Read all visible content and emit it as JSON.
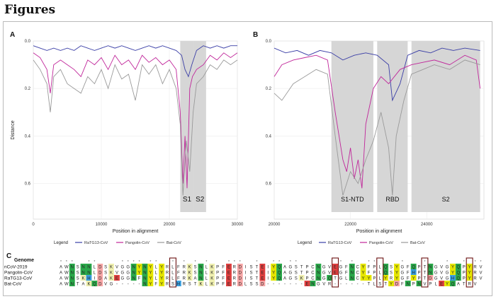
{
  "heading": "Figures",
  "colors": {
    "ratg13": "#3a3ea6",
    "pangolin": "#c0269a",
    "bat": "#9a9a9a",
    "shade": "#d6d6d6"
  },
  "chart_data": [
    {
      "type": "line",
      "panel": "A",
      "xlabel": "Position in alignment",
      "ylabel": "Distance",
      "xlim": [
        0,
        30000
      ],
      "ylim": [
        0,
        0.75
      ],
      "xticks": [
        "0",
        "10000",
        "20000",
        "30000"
      ],
      "yticks": [
        "0.0",
        "0.2",
        "0.4",
        "0.6"
      ],
      "regions": [
        {
          "label": "S1",
          "from": 21600,
          "to": 23600
        },
        {
          "label": "S2",
          "from": 23600,
          "to": 25400
        }
      ],
      "legend_title": "Legend",
      "series": [
        {
          "name": "RaTG13-CoV",
          "x": [
            0,
            1000,
            2000,
            3000,
            4000,
            5000,
            6000,
            7000,
            8000,
            9000,
            10000,
            11000,
            12000,
            13000,
            14000,
            15000,
            16000,
            17000,
            18000,
            19000,
            20000,
            21000,
            21800,
            22300,
            22800,
            23300,
            24000,
            25000,
            26000,
            27000,
            28000,
            29000,
            30000
          ],
          "values": [
            0.02,
            0.03,
            0.04,
            0.03,
            0.04,
            0.03,
            0.04,
            0.02,
            0.03,
            0.04,
            0.03,
            0.02,
            0.03,
            0.02,
            0.03,
            0.04,
            0.03,
            0.02,
            0.03,
            0.02,
            0.03,
            0.04,
            0.06,
            0.12,
            0.15,
            0.1,
            0.04,
            0.02,
            0.03,
            0.02,
            0.03,
            0.02,
            0.02
          ]
        },
        {
          "name": "Pangolin-CoV",
          "x": [
            0,
            1000,
            2000,
            2500,
            3000,
            4000,
            5000,
            6000,
            7000,
            8000,
            9000,
            10000,
            11000,
            12000,
            13000,
            14000,
            15000,
            16000,
            17000,
            18000,
            19000,
            20000,
            21000,
            21600,
            22000,
            22300,
            22600,
            23000,
            23400,
            24000,
            25000,
            26000,
            27000,
            28000,
            29000,
            30000
          ],
          "values": [
            0.05,
            0.07,
            0.12,
            0.22,
            0.1,
            0.08,
            0.1,
            0.12,
            0.15,
            0.08,
            0.1,
            0.07,
            0.12,
            0.06,
            0.1,
            0.08,
            0.12,
            0.06,
            0.09,
            0.07,
            0.1,
            0.08,
            0.12,
            0.3,
            0.6,
            0.4,
            0.62,
            0.2,
            0.15,
            0.12,
            0.1,
            0.06,
            0.08,
            0.05,
            0.07,
            0.05
          ]
        },
        {
          "name": "Bat-CoV",
          "x": [
            0,
            1000,
            2000,
            2500,
            3000,
            4000,
            5000,
            6000,
            7000,
            8000,
            9000,
            10000,
            11000,
            12000,
            13000,
            14000,
            15000,
            16000,
            17000,
            18000,
            19000,
            20000,
            21000,
            21600,
            22000,
            22500,
            23000,
            23500,
            24000,
            25000,
            26000,
            27000,
            28000,
            29000,
            30000
          ],
          "values": [
            0.08,
            0.12,
            0.18,
            0.3,
            0.15,
            0.12,
            0.18,
            0.2,
            0.22,
            0.15,
            0.18,
            0.12,
            0.2,
            0.1,
            0.16,
            0.14,
            0.25,
            0.1,
            0.14,
            0.1,
            0.18,
            0.12,
            0.2,
            0.35,
            0.65,
            0.42,
            0.55,
            0.3,
            0.18,
            0.15,
            0.1,
            0.12,
            0.08,
            0.1,
            0.08
          ]
        }
      ]
    },
    {
      "type": "line",
      "panel": "B",
      "xlabel": "Position in alignment",
      "ylabel": "",
      "xlim": [
        20000,
        25500
      ],
      "ylim": [
        0,
        0.75
      ],
      "xticks": [
        "20000",
        "22000",
        "24000"
      ],
      "yticks": [
        "0.0",
        "0.2",
        "0.4",
        "0.6"
      ],
      "regions": [
        {
          "label": "S1-NTD",
          "from": 21500,
          "to": 22600
        },
        {
          "label": "RBD",
          "from": 22700,
          "to": 23500
        },
        {
          "label": "S2",
          "from": 23600,
          "to": 25400
        }
      ],
      "legend_title": "Legend",
      "series": [
        {
          "name": "RaTG13-CoV",
          "x": [
            20000,
            20300,
            20600,
            20900,
            21200,
            21500,
            21800,
            22100,
            22400,
            22700,
            23000,
            23100,
            23300,
            23500,
            23800,
            24100,
            24400,
            24700,
            25000,
            25400
          ],
          "values": [
            0.03,
            0.05,
            0.04,
            0.06,
            0.04,
            0.05,
            0.08,
            0.06,
            0.05,
            0.06,
            0.1,
            0.25,
            0.18,
            0.06,
            0.04,
            0.05,
            0.03,
            0.04,
            0.03,
            0.04
          ]
        },
        {
          "name": "Pangolin-CoV",
          "x": [
            20000,
            20200,
            20500,
            20800,
            21100,
            21400,
            21600,
            21800,
            21900,
            22000,
            22100,
            22200,
            22300,
            22400,
            22600,
            22800,
            23000,
            23300,
            23600,
            23900,
            24200,
            24600,
            25000,
            25300,
            25400
          ],
          "values": [
            0.15,
            0.1,
            0.08,
            0.07,
            0.06,
            0.08,
            0.3,
            0.5,
            0.55,
            0.45,
            0.58,
            0.5,
            0.62,
            0.35,
            0.2,
            0.15,
            0.18,
            0.12,
            0.1,
            0.09,
            0.08,
            0.1,
            0.06,
            0.08,
            0.2
          ]
        },
        {
          "name": "Bat-CoV",
          "x": [
            20000,
            20200,
            20500,
            20800,
            21100,
            21400,
            21600,
            21800,
            22000,
            22200,
            22400,
            22600,
            22800,
            23000,
            23100,
            23200,
            23400,
            23600,
            23900,
            24200,
            24600,
            25000,
            25400
          ],
          "values": [
            0.22,
            0.25,
            0.18,
            0.15,
            0.12,
            0.14,
            0.4,
            0.65,
            0.55,
            0.6,
            0.5,
            0.42,
            0.3,
            0.45,
            0.65,
            0.4,
            0.25,
            0.14,
            0.12,
            0.1,
            0.12,
            0.08,
            0.1
          ]
        }
      ]
    }
  ],
  "alignment": {
    "panel": "C",
    "header": "Genome",
    "rows": [
      {
        "name": "nCoV-2019",
        "seq": "AWNSNNLDSKVGGNYNYLYRLFRKSNLKPFERDISTEIYQAGSTPCNGVEGFNCYFPLQSYGFQPTNGVGYQPYRV"
      },
      {
        "name": "Pangolin-CoV",
        "seq": "AWNSNNLDSKVGGNYNYLYRLFRKSNLKPFERDISTEIYQAGSTPCNGVEGFNCYFPLQSYGFHPTNGVGYQPYRV"
      },
      {
        "name": "RaTG13-CoV",
        "seq": "AWNSKHIDAKEGGNFNYLYRLFRKANLKPFERDISTEIYQAGSKPCNGQTGLNCYYPLYRYGFYPTDGVGHQPYRV"
      },
      {
        "name": "Bat-CoV",
        "seq": "AWNTAKQDVG-----NYFYRSHRSTKLKPFERDLSSD-------ENGVR------TLSTYDFNPNVPLEYQATRV"
      }
    ],
    "stars": "***  **    **** **  * * * *   ***  *  ** **       * *  **    *   *   *  * **"
  }
}
